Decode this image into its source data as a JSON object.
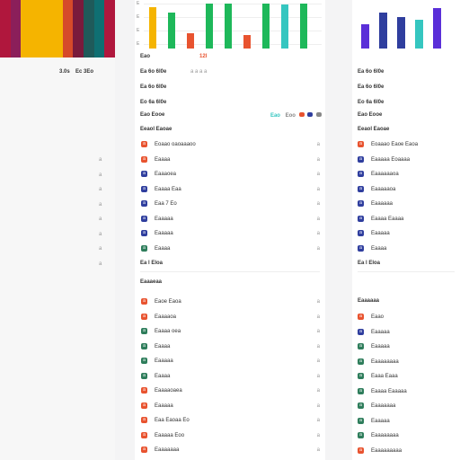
{
  "colors": {
    "orange": "#e8532f",
    "navy": "#2f3e9e",
    "teal": "#2e7d5b",
    "green": "#1eb85a",
    "yellow": "#f5b400",
    "purple": "#5a2fd8",
    "cyan": "#35c6c0"
  },
  "left": {
    "stripes": [
      "#b0173d",
      "#8b1f5a",
      "#f5b400",
      "#f5b400",
      "#d64a2a",
      "#7a1a3c",
      "#1f5a5a",
      "#0f6f72",
      "#b0173d"
    ],
    "header_a": "3.0s",
    "header_b": "Ec 3Eo",
    "chevrons": [
      "a",
      "a",
      "a",
      "a",
      "a",
      "a",
      "a",
      "a"
    ]
  },
  "middle": {
    "stat_rows": [
      "Eao",
      "Ea 6o 6l0e",
      "Ea 6o 6l0e",
      "Eo 6a 6l0e"
    ],
    "stat_right": "12l",
    "filter_label": "Eao Eooe",
    "filter_tag": "Eao",
    "filter_tag2": "Eoo",
    "section1": "Eeaol Eaoae",
    "list1": [
      {
        "icon": "a",
        "label": "Eoaao oaoaaaoo",
        "color": "orange"
      },
      {
        "icon": "a",
        "label": "Eaaaa",
        "color": "orange"
      },
      {
        "icon": "a",
        "label": "Eaaaoea",
        "color": "navy"
      },
      {
        "icon": "a",
        "label": "Eaaaa Eaa",
        "color": "navy"
      },
      {
        "icon": "a",
        "label": "Eaa 7 Eo",
        "color": "navy"
      },
      {
        "icon": "a",
        "label": "Eaaaaa",
        "color": "navy"
      },
      {
        "icon": "a",
        "label": "Eaaaaa",
        "color": "navy"
      },
      {
        "icon": "a",
        "label": "Eaaaa",
        "color": "teal"
      }
    ],
    "subtotal": "Ea  l  Eloa",
    "section2": "Eaaaeaa",
    "list2": [
      {
        "icon": "a",
        "label": "Eaoe Eaoa",
        "color": "orange"
      },
      {
        "icon": "a",
        "label": "Eaaaaoa",
        "color": "orange"
      },
      {
        "icon": "a",
        "label": "Eaaaa oea",
        "color": "teal"
      },
      {
        "icon": "a",
        "label": "Eaaaa",
        "color": "teal"
      },
      {
        "icon": "a",
        "label": "Eaaaaa",
        "color": "teal"
      },
      {
        "icon": "a",
        "label": "Eaaaa",
        "color": "teal"
      },
      {
        "icon": "a",
        "label": "Eaaaaoaea",
        "color": "orange"
      },
      {
        "icon": "a",
        "label": "Eaaaaa",
        "color": "orange"
      },
      {
        "icon": "a",
        "label": "Eaa Eaoaa  Eo",
        "color": "orange"
      },
      {
        "icon": "a",
        "label": "Eaaaaa Eoo",
        "color": "orange"
      },
      {
        "icon": "a",
        "label": "Eaaaaaaa",
        "color": "orange"
      }
    ]
  },
  "right": {
    "stat_rows": [
      "Eao",
      "Ea 6o 6l0e",
      "Ea 6o 6l0e",
      "Eo 6a 6l0e"
    ],
    "filter_label": "Eao Eooe",
    "section1": "Eeaol Eaoae",
    "list1": [
      {
        "icon": "a",
        "label": "Eoaaao Eaoe Eaoa",
        "color": "orange"
      },
      {
        "icon": "a",
        "label": "Eaaaaa Eoaaaa",
        "color": "navy"
      },
      {
        "icon": "a",
        "label": "Eaaaaaaoa",
        "color": "navy"
      },
      {
        "icon": "a",
        "label": "Eaaaaaoa",
        "color": "navy"
      },
      {
        "icon": "a",
        "label": "Eaaaaaa",
        "color": "navy"
      },
      {
        "icon": "a",
        "label": "Eaaaa Eaaaa",
        "color": "navy"
      },
      {
        "icon": "a",
        "label": "Eaaaaa",
        "color": "navy"
      },
      {
        "icon": "a",
        "label": "Eaaaa",
        "color": "navy"
      }
    ],
    "subtotal": "Ea  l  Eloa",
    "section2": "Eaaaaaa",
    "list2": [
      {
        "icon": "a",
        "label": "Eaao",
        "color": "orange"
      },
      {
        "icon": "a",
        "label": "Eaaaaa",
        "color": "navy"
      },
      {
        "icon": "a",
        "label": "Eaaaaa",
        "color": "teal"
      },
      {
        "icon": "a",
        "label": "Eaaaaaaaa",
        "color": "teal"
      },
      {
        "icon": "a",
        "label": "Eaaa Eaaa",
        "color": "teal"
      },
      {
        "icon": "a",
        "label": "Eaaaa Eaaaaa",
        "color": "teal"
      },
      {
        "icon": "a",
        "label": "Eaaaaaaa",
        "color": "teal"
      },
      {
        "icon": "a",
        "label": "Eaaaaa",
        "color": "teal"
      },
      {
        "icon": "a",
        "label": "Eaaaaaaaa",
        "color": "teal"
      },
      {
        "icon": "a",
        "label": "Eaaaaaaaaa",
        "color": "orange"
      }
    ]
  },
  "chart_middle": {
    "y_ticks": [
      "E",
      "E",
      "E",
      "E"
    ],
    "bars": [
      {
        "v": 0.92,
        "color": "#f5b400"
      },
      {
        "v": 0.8,
        "color": "#1eb85a"
      },
      {
        "v": 0.35,
        "color": "#e8532f"
      },
      {
        "v": 1.0,
        "color": "#1eb85a"
      },
      {
        "v": 1.0,
        "color": "#1eb85a"
      },
      {
        "v": 0.3,
        "color": "#e8532f"
      },
      {
        "v": 1.0,
        "color": "#1eb85a"
      },
      {
        "v": 0.98,
        "color": "#35c6c0"
      },
      {
        "v": 1.0,
        "color": "#1eb85a"
      }
    ]
  },
  "chart_right": {
    "bars": [
      {
        "v": 0.55,
        "color": "#5a2fd8"
      },
      {
        "v": 0.8,
        "color": "#2f3e9e"
      },
      {
        "v": 0.7,
        "color": "#2f3e9e"
      },
      {
        "v": 0.65,
        "color": "#35c6c0"
      },
      {
        "v": 0.9,
        "color": "#5a2fd8"
      }
    ]
  }
}
